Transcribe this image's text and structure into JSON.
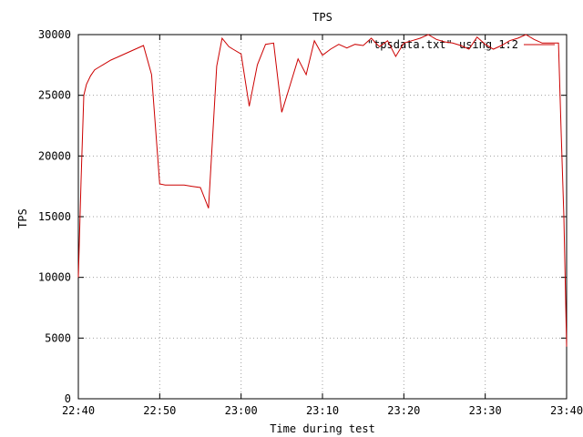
{
  "chart_data": {
    "type": "line",
    "title": "TPS",
    "xlabel": "Time during test",
    "ylabel": "TPS",
    "xlim": [
      "22:40",
      "23:40"
    ],
    "ylim": [
      0,
      30000
    ],
    "grid": true,
    "legend_position": "top-right",
    "x_ticks": [
      "22:40",
      "22:50",
      "23:00",
      "23:10",
      "23:20",
      "23:30",
      "23:40"
    ],
    "y_ticks": [
      0,
      5000,
      10000,
      15000,
      20000,
      25000,
      30000
    ],
    "series": [
      {
        "name": "\"tpsdata.txt\" using 1:2",
        "color": "#cc0000",
        "x": [
          "22:40:00",
          "22:40:20",
          "22:40:40",
          "22:41:00",
          "22:41:30",
          "22:42:00",
          "22:42:30",
          "22:43:00",
          "22:44:00",
          "22:45:00",
          "22:46:00",
          "22:47:00",
          "22:48:00",
          "22:49:00",
          "22:50:00",
          "22:50:40",
          "22:51:00",
          "22:52:00",
          "22:53:00",
          "22:54:00",
          "22:55:00",
          "22:56:00",
          "22:57:00",
          "22:57:40",
          "22:58:30",
          "22:59:00",
          "23:00:00",
          "23:01:00",
          "23:02:00",
          "23:03:00",
          "23:04:00",
          "23:05:00",
          "23:06:00",
          "23:07:00",
          "23:08:00",
          "23:09:00",
          "23:10:00",
          "23:11:00",
          "23:12:00",
          "23:13:00",
          "23:14:00",
          "23:15:00",
          "23:16:00",
          "23:17:00",
          "23:18:00",
          "23:19:00",
          "23:20:00",
          "23:21:00",
          "23:22:00",
          "23:23:00",
          "23:24:00",
          "23:25:00",
          "23:26:00",
          "23:27:00",
          "23:28:00",
          "23:29:00",
          "23:30:00",
          "23:31:00",
          "23:32:00",
          "23:33:00",
          "23:34:00",
          "23:35:00",
          "23:36:00",
          "23:37:00",
          "23:38:00",
          "23:39:00",
          "23:39:20",
          "23:39:40",
          "23:40:00"
        ],
        "y": [
          10000,
          18000,
          25000,
          25900,
          26600,
          27100,
          27300,
          27500,
          27900,
          28200,
          28500,
          28800,
          29100,
          26700,
          17700,
          17600,
          17600,
          17600,
          17600,
          17500,
          17400,
          15700,
          27400,
          29700,
          29000,
          28800,
          28400,
          24100,
          27500,
          29200,
          29300,
          23600,
          25800,
          28000,
          26700,
          29500,
          28300,
          28800,
          29200,
          28900,
          29200,
          29100,
          29700,
          29000,
          29500,
          28200,
          29300,
          29500,
          29700,
          30000,
          29600,
          29400,
          29300,
          29100,
          28800,
          29800,
          29200,
          28800,
          29100,
          29500,
          29700,
          30000,
          29600,
          29300,
          29300,
          29300,
          22000,
          15000,
          4300
        ]
      }
    ]
  }
}
